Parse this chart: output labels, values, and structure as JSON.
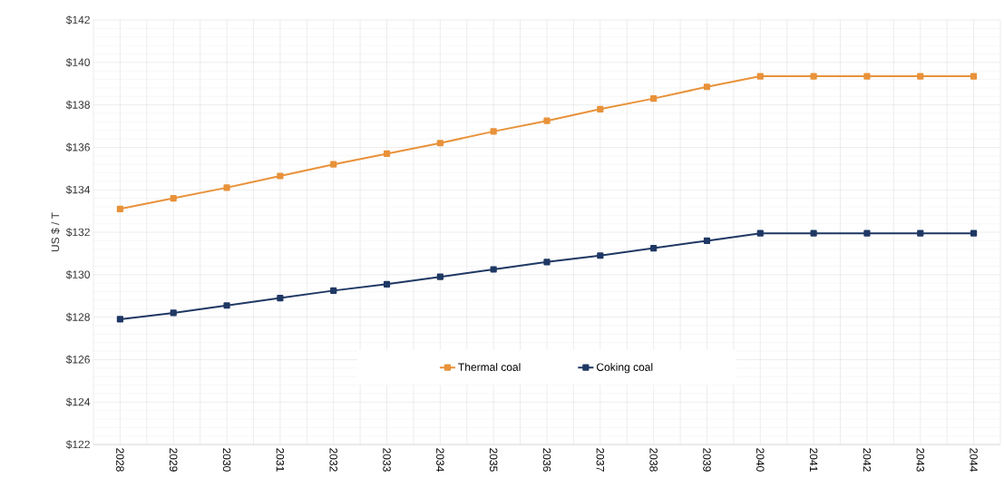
{
  "chart_data": {
    "type": "line",
    "ylabel": "US $ / T",
    "categories": [
      "2028",
      "2029",
      "2030",
      "2031",
      "2032",
      "2033",
      "2034",
      "2035",
      "2036",
      "2037",
      "2038",
      "2039",
      "2040",
      "2041",
      "2042",
      "2043",
      "2044"
    ],
    "series": [
      {
        "name": "Thermal coal",
        "color": "#e8923a",
        "values": [
          133.1,
          133.6,
          134.1,
          134.65,
          135.2,
          135.7,
          136.2,
          136.75,
          137.25,
          137.8,
          138.3,
          138.85,
          139.35,
          139.35,
          139.35,
          139.35,
          139.35
        ]
      },
      {
        "name": "Coking coal",
        "color": "#1f3864",
        "values": [
          127.9,
          128.2,
          128.55,
          128.9,
          129.25,
          129.55,
          129.9,
          130.25,
          130.6,
          130.9,
          131.25,
          131.6,
          131.95,
          131.95,
          131.95,
          131.95,
          131.95
        ]
      }
    ],
    "ylim": [
      122,
      142
    ],
    "yticks": [
      {
        "value": 122,
        "label": "$122"
      },
      {
        "value": 124,
        "label": "$124"
      },
      {
        "value": 126,
        "label": "$126"
      },
      {
        "value": 128,
        "label": "$128"
      },
      {
        "value": 130,
        "label": "$130"
      },
      {
        "value": 132,
        "label": "$132"
      },
      {
        "value": 134,
        "label": "$134"
      },
      {
        "value": 136,
        "label": "$136"
      },
      {
        "value": 138,
        "label": "$138"
      },
      {
        "value": 140,
        "label": "$140"
      },
      {
        "value": 142,
        "label": "$142"
      }
    ],
    "grid": true,
    "legend": "bottom",
    "marker": "square",
    "line_style": "solid"
  }
}
